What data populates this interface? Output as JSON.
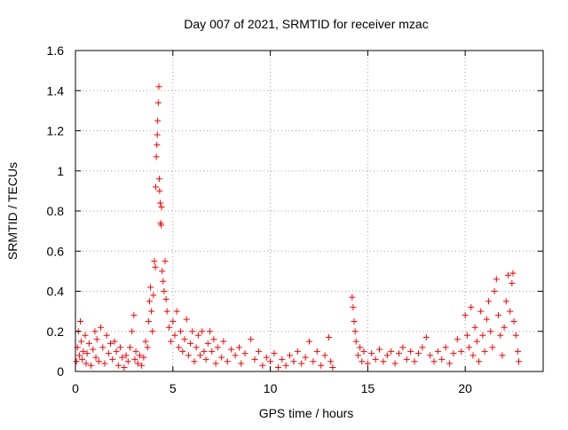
{
  "chart_data": {
    "type": "scatter",
    "title": "Day 007 of 2021, SRMTID for receiver mzac",
    "xlabel": "GPS time / hours",
    "ylabel": "SRMTID / TECUs",
    "xlim": [
      0,
      24
    ],
    "ylim": [
      0,
      1.6
    ],
    "grid": true,
    "marker": "+",
    "x_ticks": [
      0,
      5,
      10,
      15,
      20
    ],
    "x_tick_labels": [
      "0",
      "5",
      "10",
      "15",
      "20"
    ],
    "y_ticks": [
      0,
      0.2,
      0.4,
      0.6,
      0.8,
      1.0,
      1.2,
      1.4,
      1.6
    ],
    "y_tick_labels": [
      "0",
      "0.2",
      "0.4",
      "0.6",
      "0.8",
      "1",
      "1.2",
      "1.4",
      "1.6"
    ],
    "series": [
      {
        "name": "SRMTID",
        "color": "#ff0000",
        "points": [
          [
            0.05,
            0.05
          ],
          [
            0.1,
            0.12
          ],
          [
            0.15,
            0.2
          ],
          [
            0.2,
            0.08
          ],
          [
            0.25,
            0.25
          ],
          [
            0.3,
            0.15
          ],
          [
            0.35,
            0.06
          ],
          [
            0.4,
            0.1
          ],
          [
            0.5,
            0.18
          ],
          [
            0.55,
            0.04
          ],
          [
            0.6,
            0.09
          ],
          [
            0.7,
            0.14
          ],
          [
            0.8,
            0.03
          ],
          [
            0.9,
            0.11
          ],
          [
            1.0,
            0.2
          ],
          [
            1.05,
            0.07
          ],
          [
            1.1,
            0.16
          ],
          [
            1.2,
            0.05
          ],
          [
            1.3,
            0.22
          ],
          [
            1.4,
            0.12
          ],
          [
            1.5,
            0.04
          ],
          [
            1.6,
            0.18
          ],
          [
            1.7,
            0.09
          ],
          [
            1.8,
            0.14
          ],
          [
            1.9,
            0.06
          ],
          [
            2.0,
            0.15
          ],
          [
            2.1,
            0.1
          ],
          [
            2.2,
            0.03
          ],
          [
            2.3,
            0.12
          ],
          [
            2.4,
            0.07
          ],
          [
            2.5,
            0.02
          ],
          [
            2.6,
            0.08
          ],
          [
            2.7,
            0.05
          ],
          [
            2.8,
            0.12
          ],
          [
            2.9,
            0.2
          ],
          [
            3.0,
            0.28
          ],
          [
            3.05,
            0.06
          ],
          [
            3.1,
            0.1
          ],
          [
            3.2,
            0.04
          ],
          [
            3.3,
            0.08
          ],
          [
            3.4,
            0.03
          ],
          [
            3.5,
            0.07
          ],
          [
            3.6,
            0.15
          ],
          [
            3.7,
            0.12
          ],
          [
            3.75,
            0.25
          ],
          [
            3.8,
            0.35
          ],
          [
            3.85,
            0.42
          ],
          [
            3.9,
            0.3
          ],
          [
            3.95,
            0.2
          ],
          [
            4.0,
            0.38
          ],
          [
            4.05,
            0.55
          ],
          [
            4.1,
            0.52
          ],
          [
            4.12,
            0.92
          ],
          [
            4.15,
            1.07
          ],
          [
            4.18,
            1.13
          ],
          [
            4.2,
            1.18
          ],
          [
            4.22,
            1.25
          ],
          [
            4.25,
            1.34
          ],
          [
            4.28,
            1.42
          ],
          [
            4.3,
            0.96
          ],
          [
            4.32,
            0.9
          ],
          [
            4.35,
            0.84
          ],
          [
            4.37,
            0.74
          ],
          [
            4.4,
            0.73
          ],
          [
            4.42,
            0.82
          ],
          [
            4.45,
            0.5
          ],
          [
            4.5,
            0.45
          ],
          [
            4.55,
            0.4
          ],
          [
            4.6,
            0.55
          ],
          [
            4.65,
            0.36
          ],
          [
            4.7,
            0.3
          ],
          [
            4.8,
            0.22
          ],
          [
            4.9,
            0.15
          ],
          [
            5.0,
            0.25
          ],
          [
            5.1,
            0.18
          ],
          [
            5.2,
            0.3
          ],
          [
            5.3,
            0.12
          ],
          [
            5.4,
            0.2
          ],
          [
            5.5,
            0.1
          ],
          [
            5.6,
            0.16
          ],
          [
            5.7,
            0.26
          ],
          [
            5.8,
            0.08
          ],
          [
            5.9,
            0.14
          ],
          [
            6.0,
            0.2
          ],
          [
            6.1,
            0.05
          ],
          [
            6.2,
            0.12
          ],
          [
            6.3,
            0.18
          ],
          [
            6.4,
            0.08
          ],
          [
            6.5,
            0.2
          ],
          [
            6.6,
            0.1
          ],
          [
            6.7,
            0.06
          ],
          [
            6.8,
            0.14
          ],
          [
            6.9,
            0.2
          ],
          [
            7.0,
            0.1
          ],
          [
            7.1,
            0.16
          ],
          [
            7.2,
            0.04
          ],
          [
            7.3,
            0.12
          ],
          [
            7.5,
            0.07
          ],
          [
            7.6,
            0.15
          ],
          [
            7.8,
            0.05
          ],
          [
            8.0,
            0.11
          ],
          [
            8.2,
            0.08
          ],
          [
            8.4,
            0.12
          ],
          [
            8.5,
            0.04
          ],
          [
            8.7,
            0.09
          ],
          [
            9.0,
            0.16
          ],
          [
            9.2,
            0.06
          ],
          [
            9.4,
            0.1
          ],
          [
            9.6,
            0.03
          ],
          [
            9.8,
            0.07
          ],
          [
            10.0,
            0.05
          ],
          [
            10.2,
            0.09
          ],
          [
            10.4,
            0.02
          ],
          [
            10.6,
            0.06
          ],
          [
            10.8,
            0.03
          ],
          [
            11.0,
            0.08
          ],
          [
            11.2,
            0.05
          ],
          [
            11.4,
            0.1
          ],
          [
            11.6,
            0.04
          ],
          [
            11.8,
            0.07
          ],
          [
            12.0,
            0.15
          ],
          [
            12.2,
            0.05
          ],
          [
            12.4,
            0.1
          ],
          [
            12.6,
            0.03
          ],
          [
            12.8,
            0.08
          ],
          [
            13.0,
            0.17
          ],
          [
            13.1,
            0.05
          ],
          [
            13.2,
            0.02
          ],
          [
            14.2,
            0.37
          ],
          [
            14.25,
            0.32
          ],
          [
            14.3,
            0.25
          ],
          [
            14.35,
            0.2
          ],
          [
            14.4,
            0.15
          ],
          [
            14.5,
            0.08
          ],
          [
            14.6,
            0.12
          ],
          [
            14.7,
            0.05
          ],
          [
            14.8,
            0.1
          ],
          [
            15.0,
            0.04
          ],
          [
            15.2,
            0.09
          ],
          [
            15.4,
            0.06
          ],
          [
            15.6,
            0.11
          ],
          [
            15.8,
            0.05
          ],
          [
            16.0,
            0.08
          ],
          [
            16.2,
            0.1
          ],
          [
            16.4,
            0.04
          ],
          [
            16.6,
            0.09
          ],
          [
            16.8,
            0.12
          ],
          [
            17.0,
            0.06
          ],
          [
            17.2,
            0.1
          ],
          [
            17.4,
            0.05
          ],
          [
            17.6,
            0.09
          ],
          [
            17.8,
            0.12
          ],
          [
            18.0,
            0.17
          ],
          [
            18.2,
            0.08
          ],
          [
            18.4,
            0.05
          ],
          [
            18.6,
            0.1
          ],
          [
            18.8,
            0.06
          ],
          [
            19.0,
            0.12
          ],
          [
            19.2,
            0.04
          ],
          [
            19.4,
            0.09
          ],
          [
            19.6,
            0.16
          ],
          [
            19.8,
            0.1
          ],
          [
            20.0,
            0.28
          ],
          [
            20.1,
            0.18
          ],
          [
            20.2,
            0.12
          ],
          [
            20.3,
            0.32
          ],
          [
            20.4,
            0.08
          ],
          [
            20.5,
            0.22
          ],
          [
            20.6,
            0.15
          ],
          [
            20.7,
            0.05
          ],
          [
            20.8,
            0.3
          ],
          [
            20.9,
            0.18
          ],
          [
            21.0,
            0.1
          ],
          [
            21.1,
            0.26
          ],
          [
            21.2,
            0.35
          ],
          [
            21.3,
            0.2
          ],
          [
            21.4,
            0.12
          ],
          [
            21.5,
            0.4
          ],
          [
            21.6,
            0.46
          ],
          [
            21.7,
            0.28
          ],
          [
            21.8,
            0.18
          ],
          [
            21.9,
            0.08
          ],
          [
            22.0,
            0.22
          ],
          [
            22.1,
            0.35
          ],
          [
            22.2,
            0.48
          ],
          [
            22.3,
            0.3
          ],
          [
            22.4,
            0.44
          ],
          [
            22.45,
            0.49
          ],
          [
            22.5,
            0.25
          ],
          [
            22.6,
            0.18
          ],
          [
            22.7,
            0.1
          ],
          [
            22.75,
            0.05
          ]
        ]
      }
    ]
  }
}
